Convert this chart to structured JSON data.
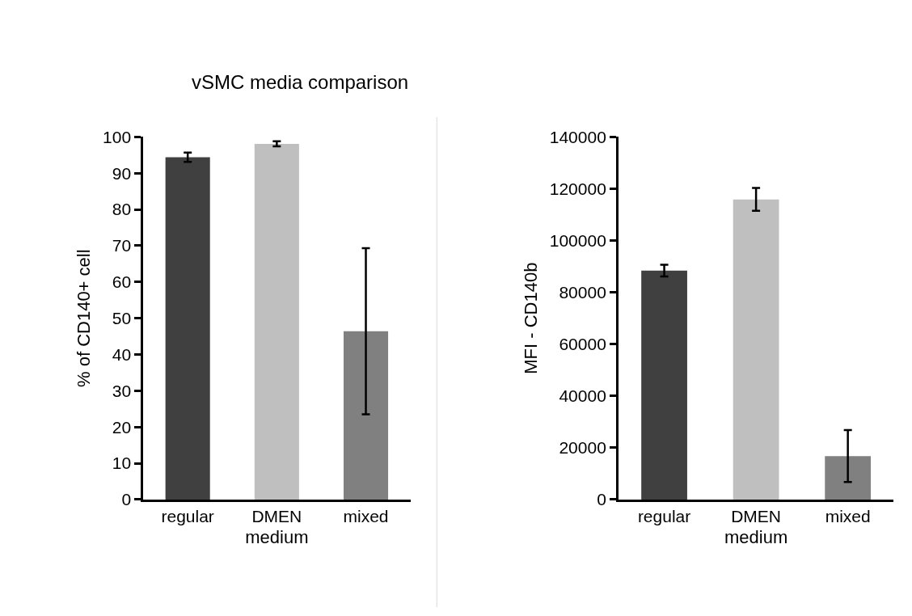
{
  "chart_data": [
    {
      "type": "bar",
      "title": "vSMC media comparison",
      "xlabel": "medium",
      "ylabel": "% of CD140+ cell",
      "categories": [
        "regular",
        "DMEN",
        "mixed"
      ],
      "values": [
        94.4,
        98.1,
        46.4
      ],
      "errors": [
        1.3,
        0.7,
        22.9
      ],
      "colors": [
        "#404040",
        "#bfbfbf",
        "#808080"
      ],
      "ylim": [
        0,
        100
      ],
      "yticks": [
        0,
        10,
        20,
        30,
        40,
        50,
        60,
        70,
        80,
        90,
        100
      ]
    },
    {
      "type": "bar",
      "xlabel": "medium",
      "ylabel": "MFI - CD140b",
      "categories": [
        "regular",
        "DMEN",
        "mixed"
      ],
      "values": [
        88400,
        115900,
        16800
      ],
      "errors": [
        2250,
        4400,
        10000
      ],
      "colors": [
        "#404040",
        "#bfbfbf",
        "#808080"
      ],
      "ylim": [
        0,
        140000
      ],
      "yticks": [
        0,
        20000,
        40000,
        60000,
        80000,
        100000,
        120000,
        140000
      ]
    }
  ]
}
